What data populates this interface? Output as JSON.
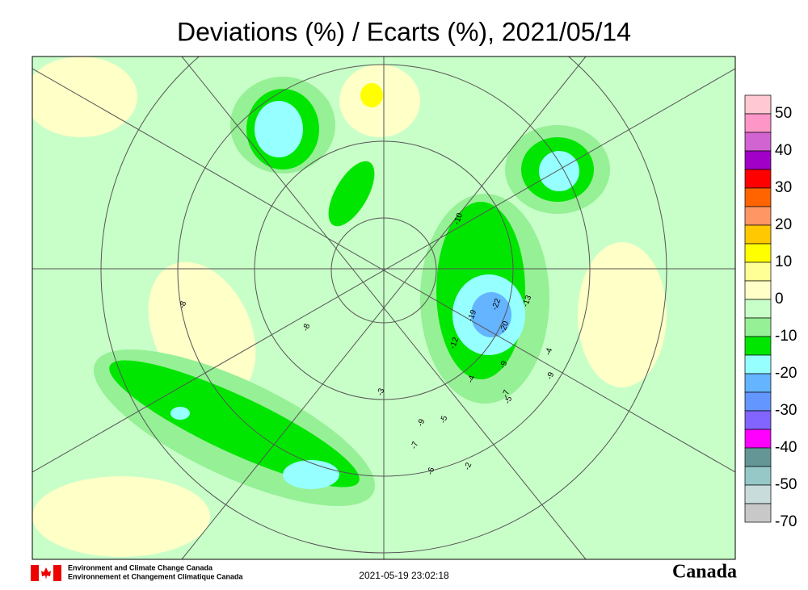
{
  "header": {
    "title": "Deviations (%) / Ecarts (%), 2021/05/14"
  },
  "legend": {
    "colors": [
      "#ffc8d2",
      "#ff96c8",
      "#d264d2",
      "#a000c8",
      "#ff0000",
      "#ff6400",
      "#ff9664",
      "#ffc800",
      "#ffff00",
      "#ffff96",
      "#ffffc8",
      "#c8ffc8",
      "#96f096",
      "#00e600",
      "#96ffff",
      "#64b4ff",
      "#6496ff",
      "#8264ff",
      "#ff00ff",
      "#649696",
      "#96c8c8",
      "#c8dcdc",
      "#c8c8c8"
    ],
    "labels": [
      "50",
      "40",
      "30",
      "20",
      "10",
      "0",
      "-10",
      "-20",
      "-30",
      "-40",
      "-50",
      "-70"
    ]
  },
  "stations": [
    "-22",
    "-20",
    "-19",
    "-13",
    "-12",
    "-10",
    "-9",
    "-9",
    "-7",
    "-7",
    "-6",
    "-5",
    "-5",
    "-4",
    "-4",
    "-3",
    "-2",
    "-8",
    "-9",
    "-8"
  ],
  "footer": {
    "agency_en": "Environment and Climate Change Canada",
    "agency_fr": "Environnement et Changement Climatique Canada",
    "timestamp": "2021-05-19 23:02:18",
    "wordmark": "Canada"
  }
}
